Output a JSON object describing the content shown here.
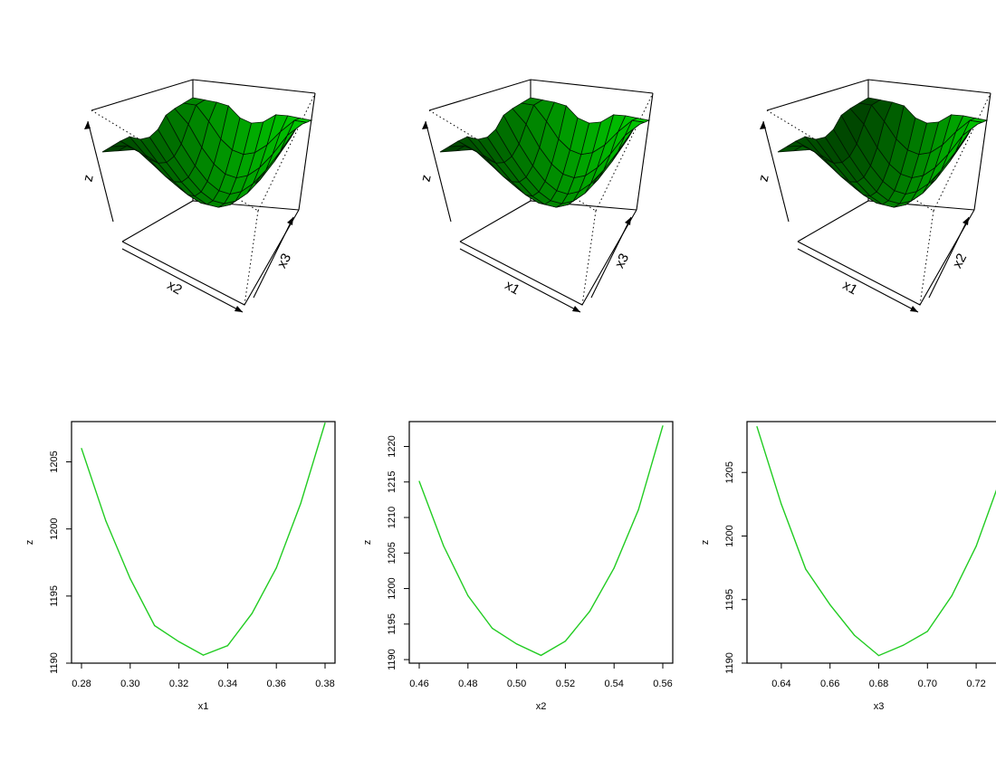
{
  "colors": {
    "line": "#22cc22",
    "surface_light": "#00d800",
    "surface_dark": "#002800",
    "axis": "#000000"
  },
  "surfaces": [
    {
      "axis_front": "x2",
      "axis_side": "x3",
      "axis_vertical": "z"
    },
    {
      "axis_front": "x1",
      "axis_side": "x3",
      "axis_vertical": "z"
    },
    {
      "axis_front": "x1",
      "axis_side": "x2",
      "axis_vertical": "z"
    }
  ],
  "chart_data": [
    {
      "type": "line",
      "xlabel": "x1",
      "ylabel": "z",
      "xlim": [
        0.28,
        0.38
      ],
      "ylim": [
        1190,
        1208
      ],
      "xticks": [
        "0.28",
        "0.30",
        "0.32",
        "0.34",
        "0.36",
        "0.38"
      ],
      "yticks": [
        "1190",
        "1195",
        "1200",
        "1205"
      ],
      "x": [
        0.28,
        0.29,
        0.3,
        0.31,
        0.32,
        0.33,
        0.34,
        0.35,
        0.36,
        0.37,
        0.38
      ],
      "y": [
        1206.0,
        1200.6,
        1196.3,
        1192.8,
        1191.6,
        1190.6,
        1191.3,
        1193.7,
        1197.1,
        1201.9,
        1207.9
      ]
    },
    {
      "type": "line",
      "xlabel": "x2",
      "ylabel": "z",
      "xlim": [
        0.46,
        0.56
      ],
      "ylim": [
        1189.5,
        1223.5
      ],
      "xticks": [
        "0.46",
        "0.48",
        "0.50",
        "0.52",
        "0.54",
        "0.56"
      ],
      "yticks": [
        "1190",
        "1195",
        "1200",
        "1205",
        "1210",
        "1215",
        "1220"
      ],
      "x": [
        0.46,
        0.47,
        0.48,
        0.49,
        0.5,
        0.51,
        0.52,
        0.53,
        0.54,
        0.55,
        0.56
      ],
      "y": [
        1215.1,
        1206.0,
        1199.0,
        1194.4,
        1192.2,
        1190.6,
        1192.6,
        1196.8,
        1202.9,
        1211.1,
        1222.9
      ]
    },
    {
      "type": "line",
      "xlabel": "x3",
      "ylabel": "z",
      "xlim": [
        0.63,
        0.73
      ],
      "ylim": [
        1190,
        1209
      ],
      "xticks": [
        "0.64",
        "0.66",
        "0.68",
        "0.70",
        "0.72"
      ],
      "yticks": [
        "1190",
        "1195",
        "1200",
        "1205"
      ],
      "x": [
        0.63,
        0.64,
        0.65,
        0.66,
        0.67,
        0.68,
        0.69,
        0.7,
        0.71,
        0.72,
        0.73
      ],
      "y": [
        1208.6,
        1202.5,
        1197.4,
        1194.6,
        1192.2,
        1190.6,
        1191.4,
        1192.5,
        1195.3,
        1199.2,
        1204.5
      ]
    }
  ]
}
